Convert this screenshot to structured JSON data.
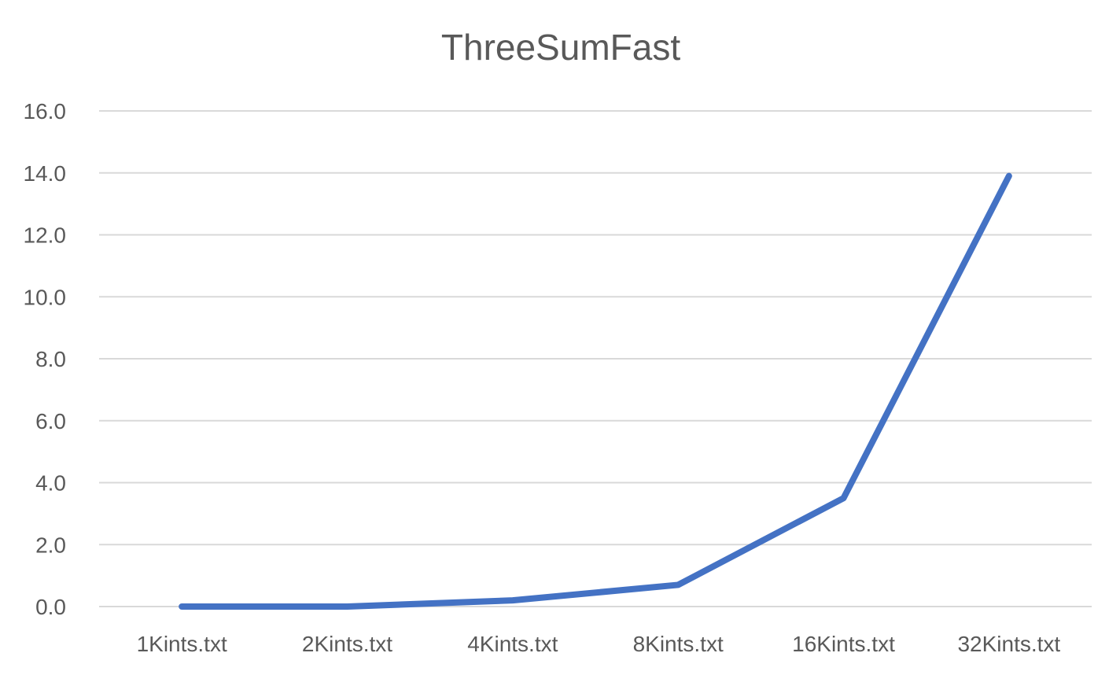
{
  "chart_data": {
    "type": "line",
    "title": "ThreeSumFast",
    "xlabel": "",
    "ylabel": "",
    "categories": [
      "1Kints.txt",
      "2Kints.txt",
      "4Kints.txt",
      "8Kints.txt",
      "16Kints.txt",
      "32Kints.txt"
    ],
    "series": [
      {
        "values": [
          0.0,
          0.0,
          0.2,
          0.7,
          3.5,
          13.9
        ],
        "color": "#4472c4"
      }
    ],
    "ylim": [
      0,
      16
    ],
    "yticks": [
      "0.0",
      "2.0",
      "4.0",
      "6.0",
      "8.0",
      "10.0",
      "12.0",
      "14.0",
      "16.0"
    ],
    "grid": true,
    "legend": "none"
  }
}
